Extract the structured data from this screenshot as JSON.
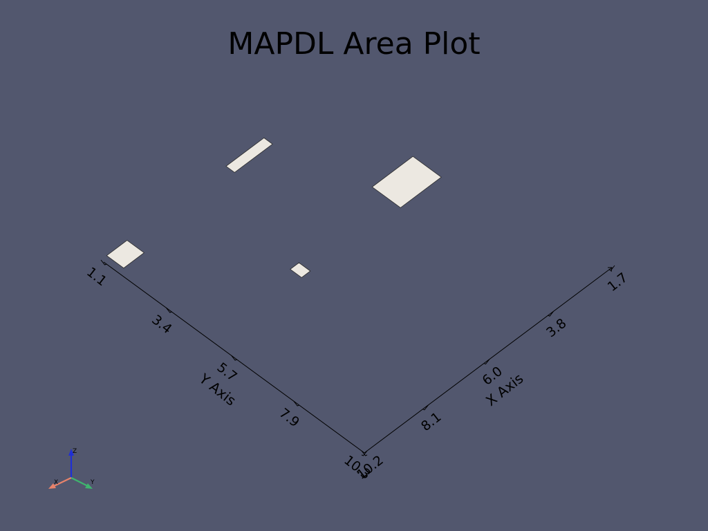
{
  "window": {
    "title": "MAPDL Area Plot",
    "background_color": "#52576e"
  },
  "chart_data": {
    "type": "scatter",
    "title": "MAPDL Area Plot",
    "xlabel": "X Axis",
    "ylabel": "Y Axis",
    "x_axis": {
      "range": [
        1.7,
        10.2
      ],
      "ticks": [
        1.7,
        3.8,
        6.0,
        8.1,
        10.2
      ],
      "tick_labels": [
        "1.7",
        "3.8",
        "6.0",
        "8.1",
        "10.2"
      ]
    },
    "y_axis": {
      "range": [
        1.1,
        10.3
      ],
      "ticks": [
        1.1,
        3.4,
        5.7,
        7.9,
        10.3
      ],
      "tick_labels": [
        "1.1",
        "3.4",
        "5.7",
        "7.9",
        "10.3"
      ]
    },
    "grid": false,
    "legend": "none",
    "areas": [
      {
        "x_range": [
          9.3,
          10.0
        ],
        "y_range": [
          1.0,
          1.6
        ]
      },
      {
        "x_range": [
          6.9,
          7.2
        ],
        "y_range": [
          4.6,
          5.0
        ]
      },
      {
        "x_range": [
          4.6,
          5.9
        ],
        "y_range": [
          1.0,
          1.3
        ]
      },
      {
        "x_range": [
          2.5,
          3.9
        ],
        "y_range": [
          4.1,
          5.1
        ]
      }
    ],
    "patch_color": "#ece8e1"
  },
  "orientation": {
    "x_label": "X",
    "y_label": "Y",
    "z_label": "Z",
    "x_color": "#e8836b",
    "y_color": "#3fb56e",
    "z_color": "#1f2fd6"
  }
}
